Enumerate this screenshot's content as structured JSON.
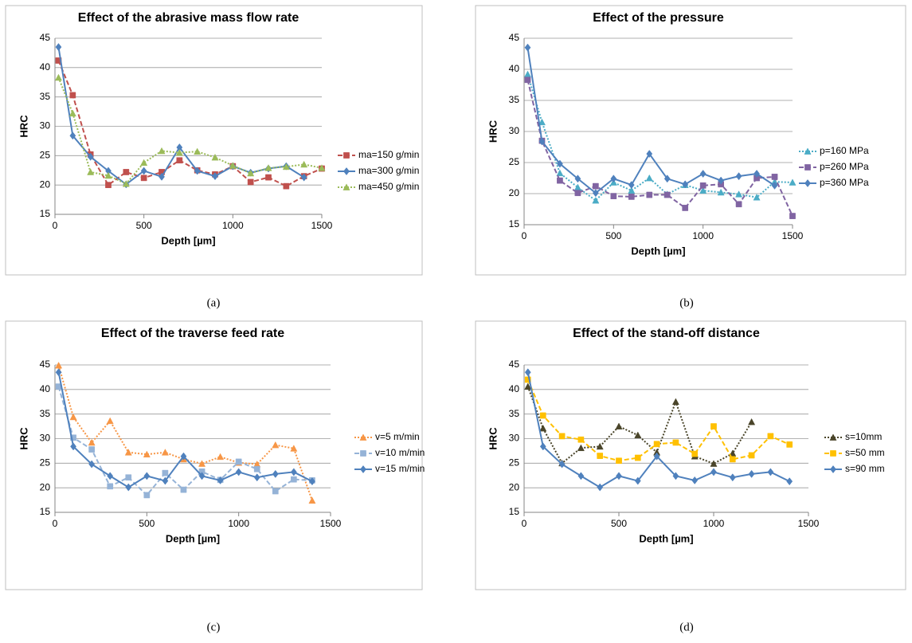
{
  "chart_data": [
    {
      "type": "line",
      "title": "Effect of the abrasive mass flow rate",
      "caption": "(a)",
      "xlabel": "Depth [µm]",
      "ylabel": "HRC",
      "x": [
        20,
        100,
        200,
        300,
        400,
        500,
        600,
        700,
        800,
        900,
        1000,
        1100,
        1200,
        1300,
        1400,
        1500
      ],
      "xlim": [
        0,
        1500
      ],
      "xticks": [
        0,
        500,
        1000,
        1500
      ],
      "ylim": [
        15,
        45
      ],
      "yticks": [
        15,
        20,
        25,
        30,
        35,
        40,
        45
      ],
      "grid": true,
      "legend": "right",
      "series": [
        {
          "name": "ma=150 g/min",
          "color": "#c0504d",
          "dash": "dashed",
          "marker": "square",
          "values": [
            41.2,
            35.3,
            25.2,
            20.0,
            22.2,
            21.2,
            22.2,
            24.2,
            22.5,
            21.8,
            23.2,
            20.5,
            21.3,
            19.8,
            21.5,
            22.8
          ]
        },
        {
          "name": "ma=300 g/min",
          "color": "#4f81bd",
          "dash": "solid",
          "marker": "diamond",
          "values": [
            43.5,
            28.4,
            24.8,
            22.4,
            20.1,
            22.4,
            21.4,
            26.4,
            22.4,
            21.5,
            23.2,
            22.1,
            22.8,
            23.2,
            21.3,
            null
          ]
        },
        {
          "name": "ma=450 g/min",
          "color": "#9bbb59",
          "dash": "dotted",
          "marker": "triangle",
          "values": [
            38.3,
            32.2,
            22.2,
            21.6,
            20.2,
            23.8,
            25.8,
            25.5,
            25.7,
            24.7,
            23.3,
            22.0,
            22.9,
            23.1,
            23.5,
            22.9
          ]
        }
      ]
    },
    {
      "type": "line",
      "title": "Effect of the pressure",
      "caption": "(b)",
      "xlabel": "Depth [µm]",
      "ylabel": "HRC",
      "x": [
        20,
        100,
        200,
        300,
        400,
        500,
        600,
        700,
        800,
        900,
        1000,
        1100,
        1200,
        1300,
        1400,
        1500
      ],
      "xlim": [
        0,
        1500
      ],
      "xticks": [
        0,
        500,
        1000,
        1500
      ],
      "ylim": [
        15,
        45
      ],
      "yticks": [
        15,
        20,
        25,
        30,
        35,
        40,
        45
      ],
      "grid": true,
      "legend": "right",
      "series": [
        {
          "name": "p=160 MPa",
          "color": "#4bacc6",
          "dash": "dotted",
          "marker": "triangle",
          "values": [
            39.2,
            31.5,
            23.3,
            21.0,
            18.9,
            21.8,
            20.5,
            22.5,
            19.9,
            21.4,
            20.5,
            20.2,
            19.9,
            19.4,
            21.9,
            21.8
          ]
        },
        {
          "name": "p=260 MPa",
          "color": "#8064a2",
          "dash": "dashed",
          "marker": "square",
          "values": [
            38.3,
            28.5,
            22.1,
            20.1,
            21.2,
            19.6,
            19.5,
            19.8,
            19.8,
            17.7,
            21.3,
            21.5,
            18.3,
            22.5,
            22.7,
            16.4
          ]
        },
        {
          "name": "p=360 MPa",
          "color": "#4f81bd",
          "dash": "solid",
          "marker": "diamond",
          "values": [
            43.5,
            28.4,
            24.8,
            22.4,
            20.1,
            22.4,
            21.4,
            26.4,
            22.4,
            21.5,
            23.2,
            22.1,
            22.8,
            23.2,
            21.3,
            null
          ]
        }
      ]
    },
    {
      "type": "line",
      "title": "Effect of the traverse feed rate",
      "caption": "(c)",
      "xlabel": "Depth [µm]",
      "ylabel": "HRC",
      "x": [
        20,
        100,
        200,
        300,
        400,
        500,
        600,
        700,
        800,
        900,
        1000,
        1100,
        1200,
        1300,
        1400
      ],
      "xlim": [
        0,
        1500
      ],
      "xticks": [
        0,
        500,
        1000,
        1500
      ],
      "ylim": [
        15,
        45
      ],
      "yticks": [
        15,
        20,
        25,
        30,
        35,
        40,
        45
      ],
      "grid": true,
      "legend": "right",
      "series": [
        {
          "name": "v=5 m/min",
          "color": "#f79646",
          "dash": "dotted",
          "marker": "triangle",
          "values": [
            44.9,
            34.4,
            29.2,
            33.6,
            27.2,
            26.8,
            27.2,
            25.8,
            24.9,
            26.3,
            25.1,
            24.8,
            28.7,
            28.0,
            17.4
          ]
        },
        {
          "name": "v=10 m/min",
          "color": "#95b3d7",
          "dash": "dashed",
          "marker": "square",
          "values": [
            40.6,
            30.2,
            27.8,
            20.3,
            22.1,
            18.5,
            23.0,
            19.6,
            23.3,
            21.6,
            25.3,
            23.8,
            19.3,
            21.7,
            21.5
          ]
        },
        {
          "name": "v=15 m/min",
          "color": "#4f81bd",
          "dash": "solid",
          "marker": "diamond",
          "values": [
            43.5,
            28.4,
            24.8,
            22.4,
            20.1,
            22.4,
            21.4,
            26.4,
            22.4,
            21.5,
            23.2,
            22.1,
            22.8,
            23.2,
            21.3
          ]
        }
      ]
    },
    {
      "type": "line",
      "title": "Effect of the stand-off distance",
      "caption": "(d)",
      "xlabel": "Depth [µm]",
      "ylabel": "HRC",
      "x": [
        20,
        100,
        200,
        300,
        400,
        500,
        600,
        700,
        800,
        900,
        1000,
        1100,
        1200,
        1300,
        1400
      ],
      "xlim": [
        0,
        1500
      ],
      "xticks": [
        0,
        500,
        1000,
        1500
      ],
      "ylim": [
        15,
        45
      ],
      "yticks": [
        15,
        20,
        25,
        30,
        35,
        40,
        45
      ],
      "grid": true,
      "legend": "right",
      "series": [
        {
          "name": "s=10mm",
          "color": "#4a452a",
          "dash": "dotted",
          "marker": "triangle",
          "values": [
            40.6,
            32.1,
            25.0,
            28.1,
            28.4,
            32.5,
            30.7,
            27.2,
            37.5,
            26.4,
            24.9,
            27.0,
            33.4,
            null,
            null
          ]
        },
        {
          "name": "s=50 mm",
          "color": "#ffc000",
          "dash": "dashed",
          "marker": "square",
          "values": [
            42.0,
            34.7,
            30.5,
            29.8,
            26.5,
            25.5,
            26.1,
            28.9,
            29.2,
            26.9,
            32.5,
            25.8,
            26.6,
            30.5,
            28.8
          ]
        },
        {
          "name": "s=90 mm",
          "color": "#4f81bd",
          "dash": "solid",
          "marker": "diamond",
          "values": [
            43.5,
            28.4,
            24.8,
            22.4,
            20.1,
            22.4,
            21.4,
            26.4,
            22.4,
            21.5,
            23.2,
            22.1,
            22.8,
            23.2,
            21.3
          ]
        }
      ]
    }
  ]
}
